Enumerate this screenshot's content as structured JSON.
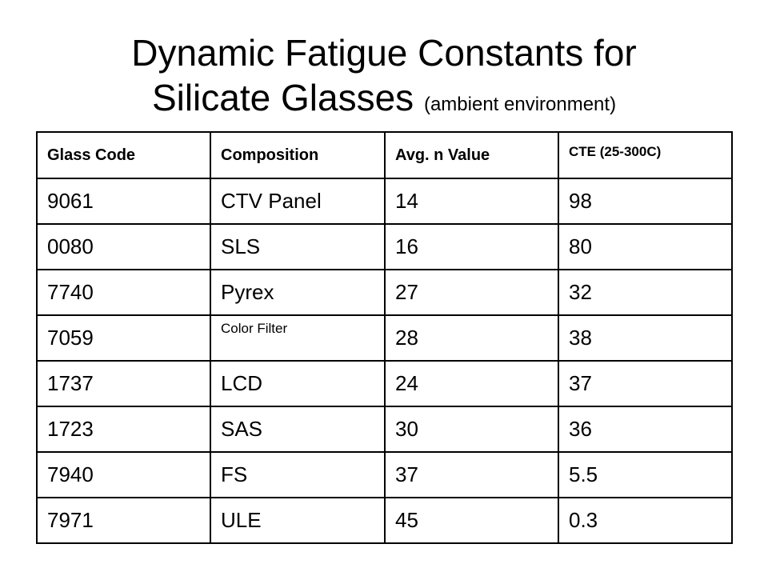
{
  "title": {
    "line1": "Dynamic Fatigue Constants for",
    "line2": "Silicate Glasses",
    "subtitle": "(ambient environment)"
  },
  "table": {
    "headers": [
      "Glass Code",
      "Composition",
      "Avg. n Value",
      "CTE (25-300C)"
    ],
    "rows": [
      [
        "9061",
        "CTV Panel",
        "14",
        "98"
      ],
      [
        "0080",
        "SLS",
        "16",
        "80"
      ],
      [
        "7740",
        "Pyrex",
        "27",
        "32"
      ],
      [
        "7059",
        "Color Filter",
        "28",
        "38"
      ],
      [
        "1737",
        "LCD",
        "24",
        "37"
      ],
      [
        "1723",
        "SAS",
        "30",
        "36"
      ],
      [
        "7940",
        "FS",
        "37",
        "5.5"
      ],
      [
        "7971",
        "ULE",
        "45",
        "0.3"
      ]
    ]
  }
}
